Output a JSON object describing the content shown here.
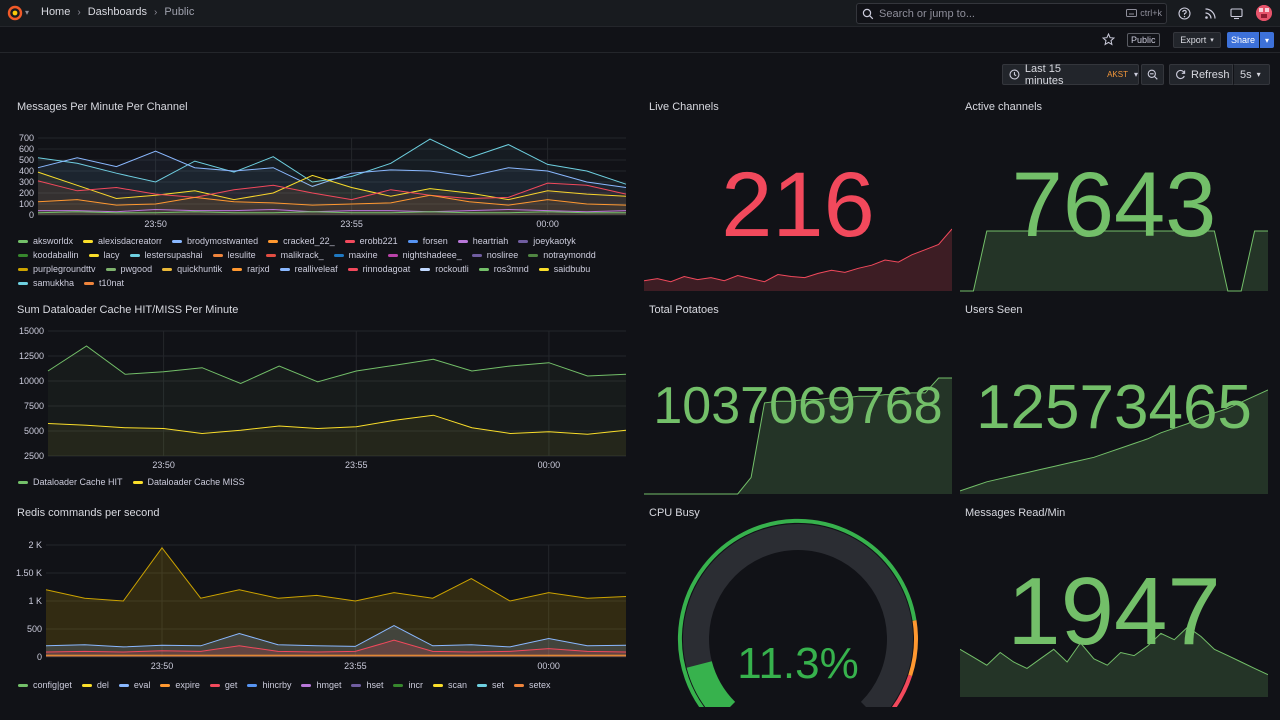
{
  "breadcrumb": {
    "home": "Home",
    "dashboards": "Dashboards",
    "current": "Public"
  },
  "search": {
    "placeholder": "Search or jump to...",
    "shortcut": "ctrl+k"
  },
  "toolbar": {
    "public_badge": "Public",
    "export_label": "Export",
    "share_label": "Share"
  },
  "time": {
    "range_label": "Last 15 minutes",
    "timezone": "AKST",
    "refresh_label": "Refresh",
    "interval": "5s"
  },
  "colors": {
    "green": "#73bf69",
    "red": "#f2495c",
    "gauge_green": "#37b24d",
    "orange": "#ff9830",
    "yellow": "#fade2a"
  },
  "panels": {
    "messages": {
      "title": "Messages Per Minute Per Channel",
      "legend": [
        {
          "name": "aksworldx",
          "color": "#73bf69"
        },
        {
          "name": "alexisdacreatorr",
          "color": "#fade2a"
        },
        {
          "name": "brodymostwanted",
          "color": "#8ab8ff"
        },
        {
          "name": "cracked_22_",
          "color": "#ff9830"
        },
        {
          "name": "erobb221",
          "color": "#f2495c"
        },
        {
          "name": "forsen",
          "color": "#5794f2"
        },
        {
          "name": "heartriah",
          "color": "#b877d9"
        },
        {
          "name": "joeykaotyk",
          "color": "#705da0"
        },
        {
          "name": "koodaballin",
          "color": "#37872d"
        },
        {
          "name": "lacy",
          "color": "#fade2a"
        },
        {
          "name": "lestersupashai",
          "color": "#6ed0e0"
        },
        {
          "name": "lesulite",
          "color": "#ef843c"
        },
        {
          "name": "malikrack_",
          "color": "#e24d42"
        },
        {
          "name": "maxine",
          "color": "#1f78c1"
        },
        {
          "name": "nightshadeee_",
          "color": "#ba43a9"
        },
        {
          "name": "nosliree",
          "color": "#705da0"
        },
        {
          "name": "notraymondd",
          "color": "#508642"
        },
        {
          "name": "purplegroundttv",
          "color": "#cca300"
        },
        {
          "name": "pwgood",
          "color": "#7eb26d"
        },
        {
          "name": "quickhuntik",
          "color": "#eab839"
        },
        {
          "name": "rarjxd",
          "color": "#ff9830"
        },
        {
          "name": "realliveleaf",
          "color": "#8ab8ff"
        },
        {
          "name": "rinnodagoat",
          "color": "#f2495c"
        },
        {
          "name": "rockoutli",
          "color": "#c0d8ff"
        },
        {
          "name": "ros3mnd",
          "color": "#73bf69"
        },
        {
          "name": "saidbubu",
          "color": "#fade2a"
        },
        {
          "name": "samukkha",
          "color": "#6ed0e0"
        },
        {
          "name": "t10nat",
          "color": "#ef843c"
        }
      ],
      "chart_data": {
        "type": "line",
        "x": [
          "23:47",
          "23:48",
          "23:49",
          "23:50",
          "23:51",
          "23:52",
          "23:53",
          "23:54",
          "23:55",
          "23:56",
          "23:57",
          "23:58",
          "23:59",
          "00:00",
          "00:01",
          "00:02"
        ],
        "xticks": [
          "23:50",
          "23:55",
          "00:00"
        ],
        "yticks": [
          "700",
          "600",
          "500",
          "400",
          "300",
          "200",
          "100",
          "0"
        ],
        "ylim": [
          0,
          700
        ],
        "series": [
          {
            "color": "#6ed0e0",
            "values": [
              520,
              470,
              380,
              300,
              490,
              390,
              530,
              300,
              350,
              470,
              690,
              520,
              640,
              460,
              400,
              280
            ]
          },
          {
            "color": "#8ab8ff",
            "values": [
              430,
              520,
              440,
              580,
              430,
              400,
              430,
              260,
              380,
              410,
              400,
              350,
              430,
              400,
              300,
              250
            ]
          },
          {
            "color": "#fade2a",
            "values": [
              390,
              270,
              150,
              180,
              220,
              140,
              200,
              360,
              250,
              170,
              240,
              200,
              140,
              220,
              190,
              170
            ]
          },
          {
            "color": "#f2495c",
            "values": [
              310,
              220,
              250,
              190,
              160,
              230,
              270,
              200,
              140,
              230,
              180,
              150,
              160,
              290,
              270,
              190
            ]
          },
          {
            "color": "#ff9830",
            "values": [
              120,
              140,
              90,
              100,
              160,
              120,
              110,
              90,
              100,
              110,
              180,
              120,
              90,
              140,
              100,
              90
            ]
          },
          {
            "color": "#b877d9",
            "values": [
              40,
              40,
              30,
              50,
              40,
              40,
              50,
              30,
              40,
              40,
              30,
              40,
              50,
              40,
              30,
              40
            ]
          },
          {
            "color": "#73bf69",
            "values": [
              20,
              30,
              20,
              20,
              30,
              20,
              20,
              30,
              20,
              20,
              30,
              20,
              20,
              30,
              20,
              20
            ]
          }
        ]
      }
    },
    "live_channels": {
      "title": "Live Channels",
      "value": "216",
      "color": "#f2495c",
      "sparkline": [
        10,
        12,
        9,
        14,
        11,
        13,
        10,
        15,
        12,
        9,
        16,
        14,
        13,
        17,
        20,
        18,
        22,
        25,
        30,
        28,
        35,
        40,
        45,
        60
      ]
    },
    "active_channels": {
      "title": "Active channels",
      "value": "7643",
      "color": "#73bf69",
      "sparkline": [
        0,
        0,
        60,
        60,
        60,
        60,
        60,
        60,
        60,
        60,
        60,
        60,
        60,
        60,
        60,
        60,
        60,
        60,
        60,
        60,
        0,
        0,
        60,
        60
      ]
    },
    "dataloader": {
      "title": "Sum Dataloader Cache HIT/MISS Per Minute",
      "legend": [
        {
          "name": "Dataloader Cache HIT",
          "color": "#73bf69"
        },
        {
          "name": "Dataloader Cache MISS",
          "color": "#fade2a"
        }
      ],
      "chart_data": {
        "type": "line",
        "x": [
          "23:47",
          "23:48",
          "23:49",
          "23:50",
          "23:51",
          "23:52",
          "23:53",
          "23:54",
          "23:55",
          "23:56",
          "23:57",
          "23:58",
          "23:59",
          "00:00",
          "00:01",
          "00:02"
        ],
        "xticks": [
          "23:50",
          "23:55",
          "00:00"
        ],
        "yticks": [
          "15000",
          "12500",
          "10000",
          "7500",
          "5000",
          "2500"
        ],
        "ylim": [
          0,
          15000
        ],
        "series": [
          {
            "name": "Dataloader Cache HIT",
            "color": "#73bf69",
            "values": [
              10200,
              13200,
              9800,
              10100,
              10600,
              8700,
              10800,
              8900,
              10200,
              10900,
              11600,
              10200,
              10800,
              11200,
              9600,
              9800
            ]
          },
          {
            "name": "Dataloader Cache MISS",
            "color": "#fade2a",
            "values": [
              3900,
              3700,
              3400,
              3300,
              2700,
              3100,
              3600,
              3300,
              3500,
              4300,
              4900,
              3400,
              2700,
              2900,
              2600,
              3100
            ]
          }
        ]
      }
    },
    "total_potatoes": {
      "title": "Total Potatoes",
      "value": "1037069768",
      "color": "#73bf69",
      "sparkline": [
        0,
        0,
        0,
        0,
        0,
        0,
        0,
        0,
        10,
        55,
        56,
        56,
        57,
        57,
        58,
        58,
        59,
        59,
        60,
        60,
        61,
        61,
        70,
        70
      ]
    },
    "users_seen": {
      "title": "Users Seen",
      "value": "12573465",
      "color": "#73bf69",
      "sparkline": [
        2,
        5,
        8,
        10,
        12,
        14,
        16,
        18,
        20,
        22,
        24,
        27,
        30,
        33,
        36,
        40,
        43,
        46,
        50,
        53,
        56,
        60,
        64,
        68
      ]
    },
    "redis": {
      "title": "Redis commands per second",
      "legend": [
        {
          "name": "config|get",
          "color": "#73bf69"
        },
        {
          "name": "del",
          "color": "#fade2a"
        },
        {
          "name": "eval",
          "color": "#8ab8ff"
        },
        {
          "name": "expire",
          "color": "#ff9830"
        },
        {
          "name": "get",
          "color": "#f2495c"
        },
        {
          "name": "hincrby",
          "color": "#5794f2"
        },
        {
          "name": "hmget",
          "color": "#b877d9"
        },
        {
          "name": "hset",
          "color": "#705da0"
        },
        {
          "name": "incr",
          "color": "#37872d"
        },
        {
          "name": "scan",
          "color": "#fade2a"
        },
        {
          "name": "set",
          "color": "#6ed0e0"
        },
        {
          "name": "setex",
          "color": "#ef843c"
        }
      ],
      "chart_data": {
        "type": "area",
        "x": [
          "23:47",
          "23:48",
          "23:49",
          "23:50",
          "23:51",
          "23:52",
          "23:53",
          "23:54",
          "23:55",
          "23:56",
          "23:57",
          "23:58",
          "23:59",
          "00:00",
          "00:01",
          "00:02"
        ],
        "xticks": [
          "23:50",
          "23:55",
          "00:00"
        ],
        "yticks": [
          "2 K",
          "1.50 K",
          "1 K",
          "500",
          "0"
        ],
        "ylim": [
          0,
          2000
        ],
        "series": [
          {
            "color": "#cca300",
            "values": [
              1200,
              1050,
              1000,
              1950,
              1050,
              1200,
              1050,
              1100,
              1000,
              1150,
              1050,
              1400,
              1000,
              1150,
              1050,
              1080
            ]
          },
          {
            "color": "#8ab8ff",
            "values": [
              200,
              220,
              180,
              210,
              200,
              420,
              220,
              200,
              190,
              560,
              200,
              220,
              180,
              330,
              200,
              210
            ]
          },
          {
            "color": "#f2495c",
            "values": [
              90,
              100,
              90,
              110,
              100,
              200,
              100,
              90,
              100,
              300,
              100,
              90,
              100,
              150,
              100,
              90
            ]
          },
          {
            "color": "#ff9830",
            "values": [
              30,
              30,
              30,
              30,
              30,
              30,
              30,
              30,
              30,
              30,
              30,
              30,
              30,
              30,
              30,
              30
            ]
          }
        ]
      }
    },
    "cpu_busy": {
      "title": "CPU Busy",
      "value": "11.3%",
      "percent": 11.3,
      "color": "#37b24d"
    },
    "messages_read": {
      "title": "Messages Read/Min",
      "value": "1947",
      "color": "#73bf69",
      "sparkline": [
        30,
        25,
        20,
        28,
        22,
        18,
        24,
        30,
        22,
        34,
        24,
        20,
        28,
        26,
        32,
        40,
        36,
        44,
        38,
        30,
        26,
        22,
        18,
        14
      ]
    }
  }
}
